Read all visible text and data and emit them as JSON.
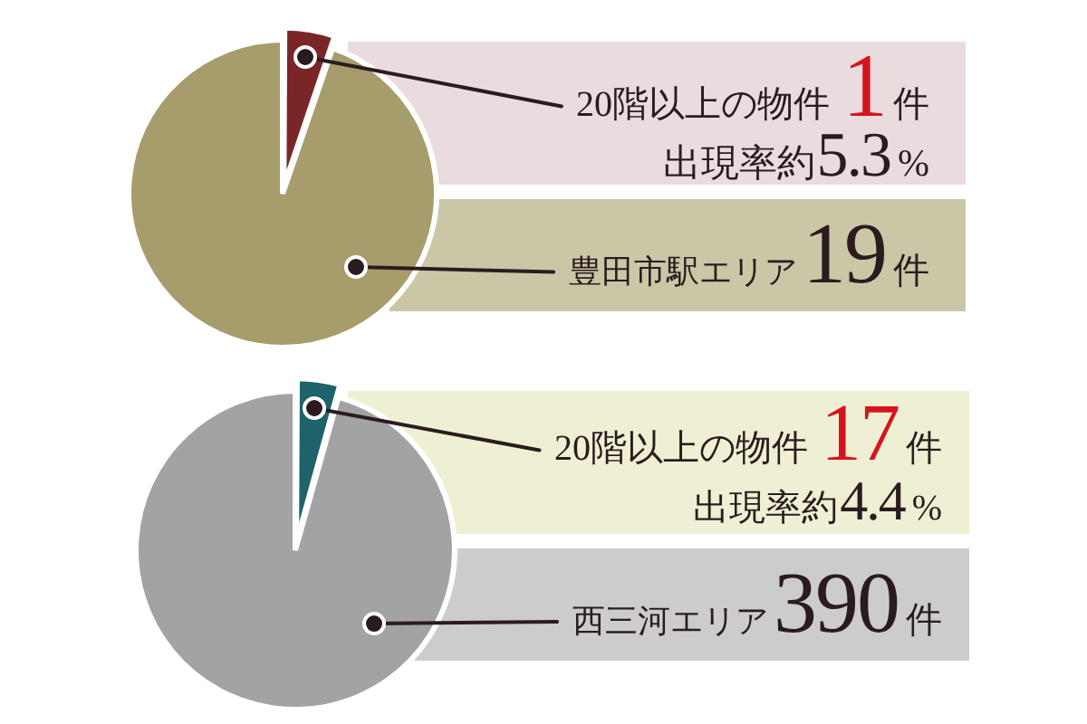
{
  "chart_data": [
    {
      "type": "pie",
      "categories": [
        "20階以上の物件",
        "豊田市駅エリア"
      ],
      "values": [
        1,
        18
      ],
      "colors": [
        "#7a2628",
        "#a79c6b"
      ],
      "value_labels": [
        "1件",
        null
      ],
      "annotations": [
        "出現率約5.3%",
        "19件"
      ]
    },
    {
      "type": "pie",
      "categories": [
        "20階以上の物件",
        "西三河エリア"
      ],
      "values": [
        17,
        373
      ],
      "colors": [
        "#1f6269",
        "#a3a3a3"
      ],
      "value_labels": [
        "17件",
        null
      ],
      "annotations": [
        "出現率約4.4%",
        "390件"
      ]
    }
  ]
}
